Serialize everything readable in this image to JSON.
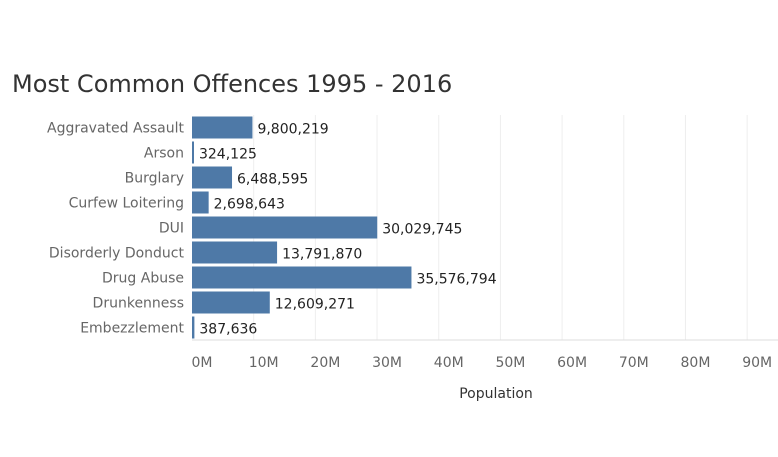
{
  "chart_data": {
    "type": "bar",
    "orientation": "horizontal",
    "title": "Most Common Offences 1995 - 2016",
    "xlabel": "Population",
    "ylabel": "",
    "categories": [
      "Aggravated Assault",
      "Arson",
      "Burglary",
      "Curfew Loitering",
      "DUI",
      "Disorderly Donduct",
      "Drug Abuse",
      "Drunkenness",
      "Embezzlement"
    ],
    "values": [
      9800219,
      324125,
      6488595,
      2698643,
      30029745,
      13791870,
      35576794,
      12609271,
      387636
    ],
    "value_labels": [
      "9,800,219",
      "324,125",
      "6,488,595",
      "2,698,643",
      "30,029,745",
      "13,791,870",
      "35,576,794",
      "12,609,271",
      "387,636"
    ],
    "xlim": [
      0,
      95000000
    ],
    "x_ticks": [
      0,
      10000000,
      20000000,
      30000000,
      40000000,
      50000000,
      60000000,
      70000000,
      80000000,
      90000000
    ],
    "x_tick_labels": [
      "0M",
      "10M",
      "20M",
      "30M",
      "40M",
      "50M",
      "60M",
      "70M",
      "80M",
      "90M"
    ],
    "grid": true,
    "legend": "none",
    "bar_color": "#4e79a7"
  }
}
